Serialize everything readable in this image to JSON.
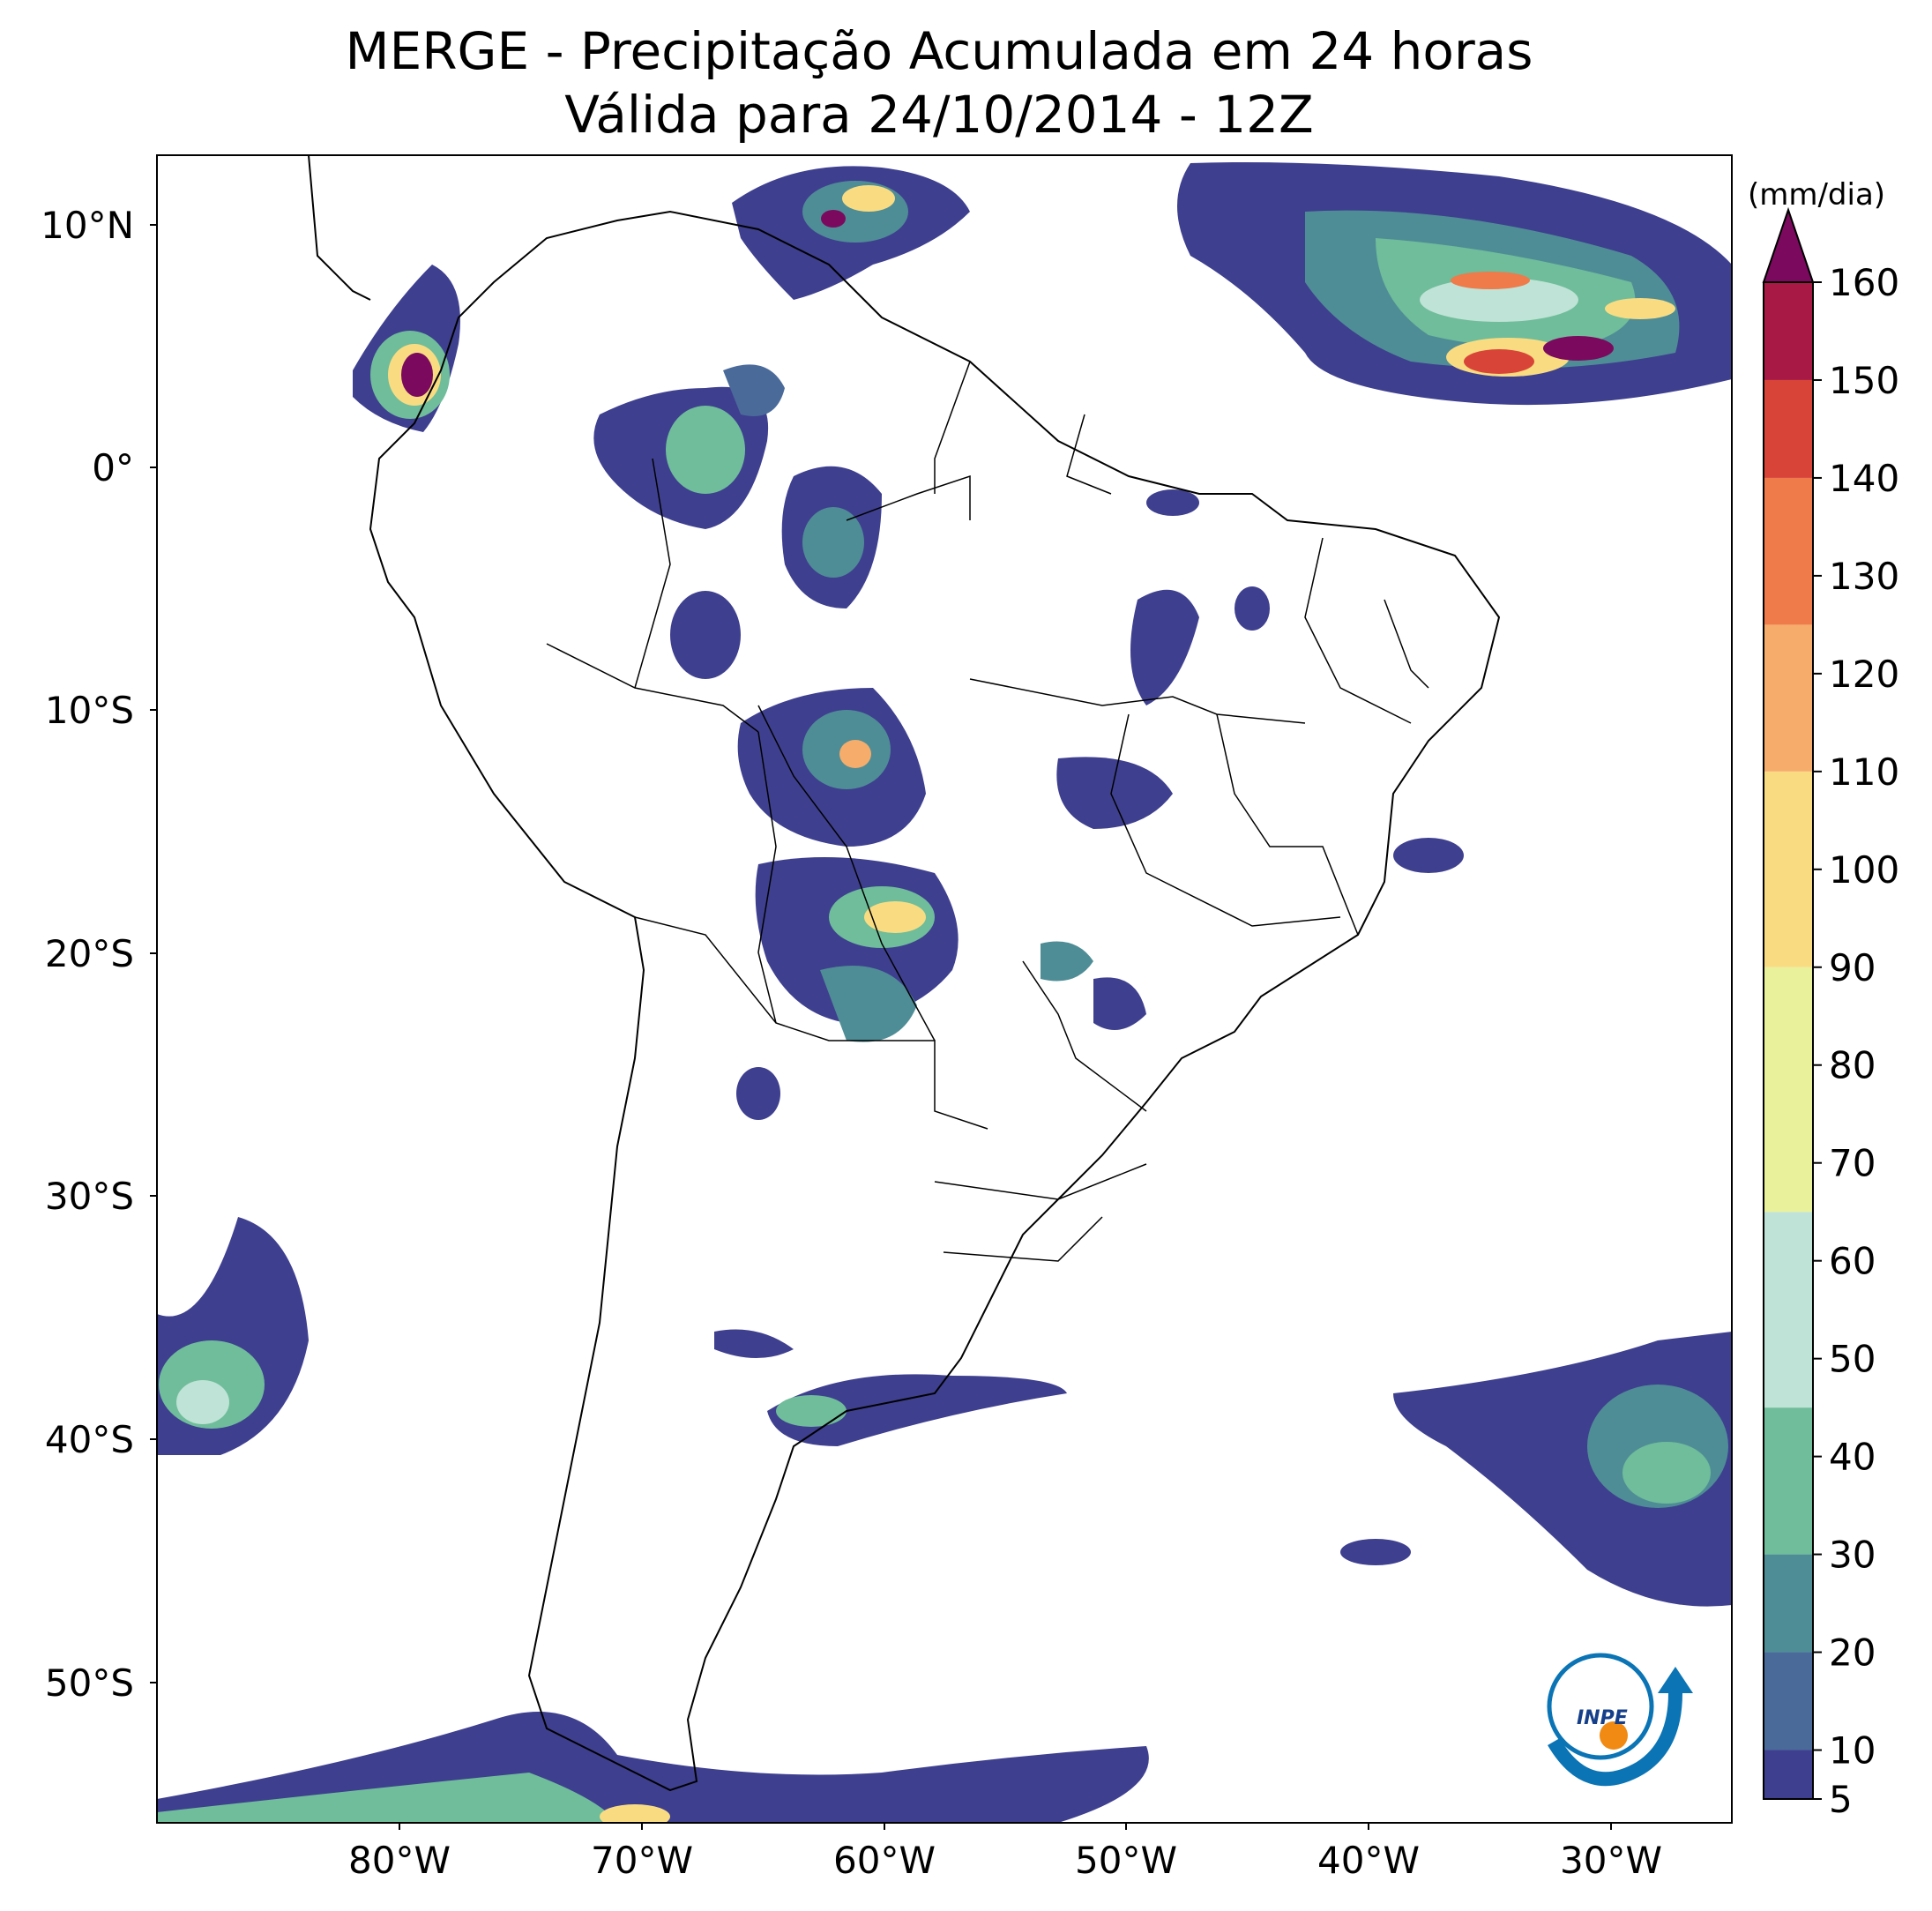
{
  "title": {
    "line1": "MERGE - Precipitação Acumulada em 24 horas",
    "line2": "Válida para 24/10/2014 - 12Z"
  },
  "map": {
    "lon_range": [
      -90,
      -25
    ],
    "lat_range": [
      -56,
      13
    ],
    "lat_ticks": [
      {
        "value": 10,
        "label": "10°N"
      },
      {
        "value": 0,
        "label": "0°"
      },
      {
        "value": -10,
        "label": "10°S"
      },
      {
        "value": -20,
        "label": "20°S"
      },
      {
        "value": -30,
        "label": "30°S"
      },
      {
        "value": -40,
        "label": "40°S"
      },
      {
        "value": -50,
        "label": "50°S"
      }
    ],
    "lon_ticks": [
      {
        "value": -80,
        "label": "80°W"
      },
      {
        "value": -70,
        "label": "70°W"
      },
      {
        "value": -60,
        "label": "60°W"
      },
      {
        "value": -50,
        "label": "50°W"
      },
      {
        "value": -40,
        "label": "40°W"
      },
      {
        "value": -30,
        "label": "30°W"
      }
    ]
  },
  "colorbar": {
    "unit": "(mm/dia)",
    "min": 5,
    "max": 160,
    "extend": "max",
    "tick_labels": [
      "5",
      "10",
      "20",
      "30",
      "40",
      "50",
      "60",
      "70",
      "80",
      "90",
      "100",
      "110",
      "120",
      "130",
      "140",
      "150",
      "160"
    ],
    "tick_values": [
      5,
      10,
      20,
      30,
      40,
      50,
      60,
      70,
      80,
      90,
      100,
      110,
      120,
      130,
      140,
      150,
      160
    ],
    "colors": {
      "c5": "#3e3f8f",
      "c20": "#4a6a9a",
      "c30": "#4f8d96",
      "c40": "#6fbd9a",
      "c55": "#bfe3d6",
      "c65": "#e9f29a",
      "c95": "#f9dc82",
      "c110": "#f6ac6a",
      "c125": "#ef7a4a",
      "c145": "#d94438",
      "c160": "#a81a45",
      "over": "#7b0a5e"
    }
  },
  "logo": {
    "text": "INPE"
  }
}
